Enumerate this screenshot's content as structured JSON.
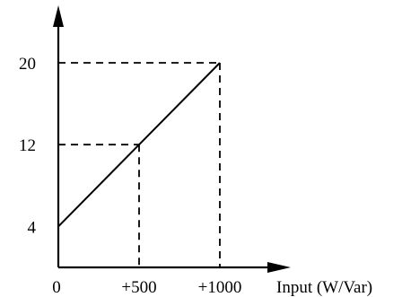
{
  "chart_data": {
    "type": "line",
    "title": "",
    "xlabel": "Input (W/Var)",
    "ylabel": "",
    "xlim": [
      0,
      1000
    ],
    "ylim": [
      0,
      20
    ],
    "x_ticks": [
      {
        "value": 0,
        "label": "0"
      },
      {
        "value": 500,
        "label": "+500"
      },
      {
        "value": 1000,
        "label": "+1000"
      }
    ],
    "y_ticks": [
      {
        "value": 4,
        "label": "4"
      },
      {
        "value": 12,
        "label": "12"
      },
      {
        "value": 20,
        "label": "20"
      }
    ],
    "series": [
      {
        "x": [
          0,
          500,
          1000
        ],
        "y": [
          4,
          12,
          20
        ]
      }
    ],
    "guides": [
      {
        "x": 500,
        "y": 12
      },
      {
        "x": 1000,
        "y": 20
      }
    ],
    "grid": false,
    "legend": "none",
    "line_color": "#000000"
  }
}
